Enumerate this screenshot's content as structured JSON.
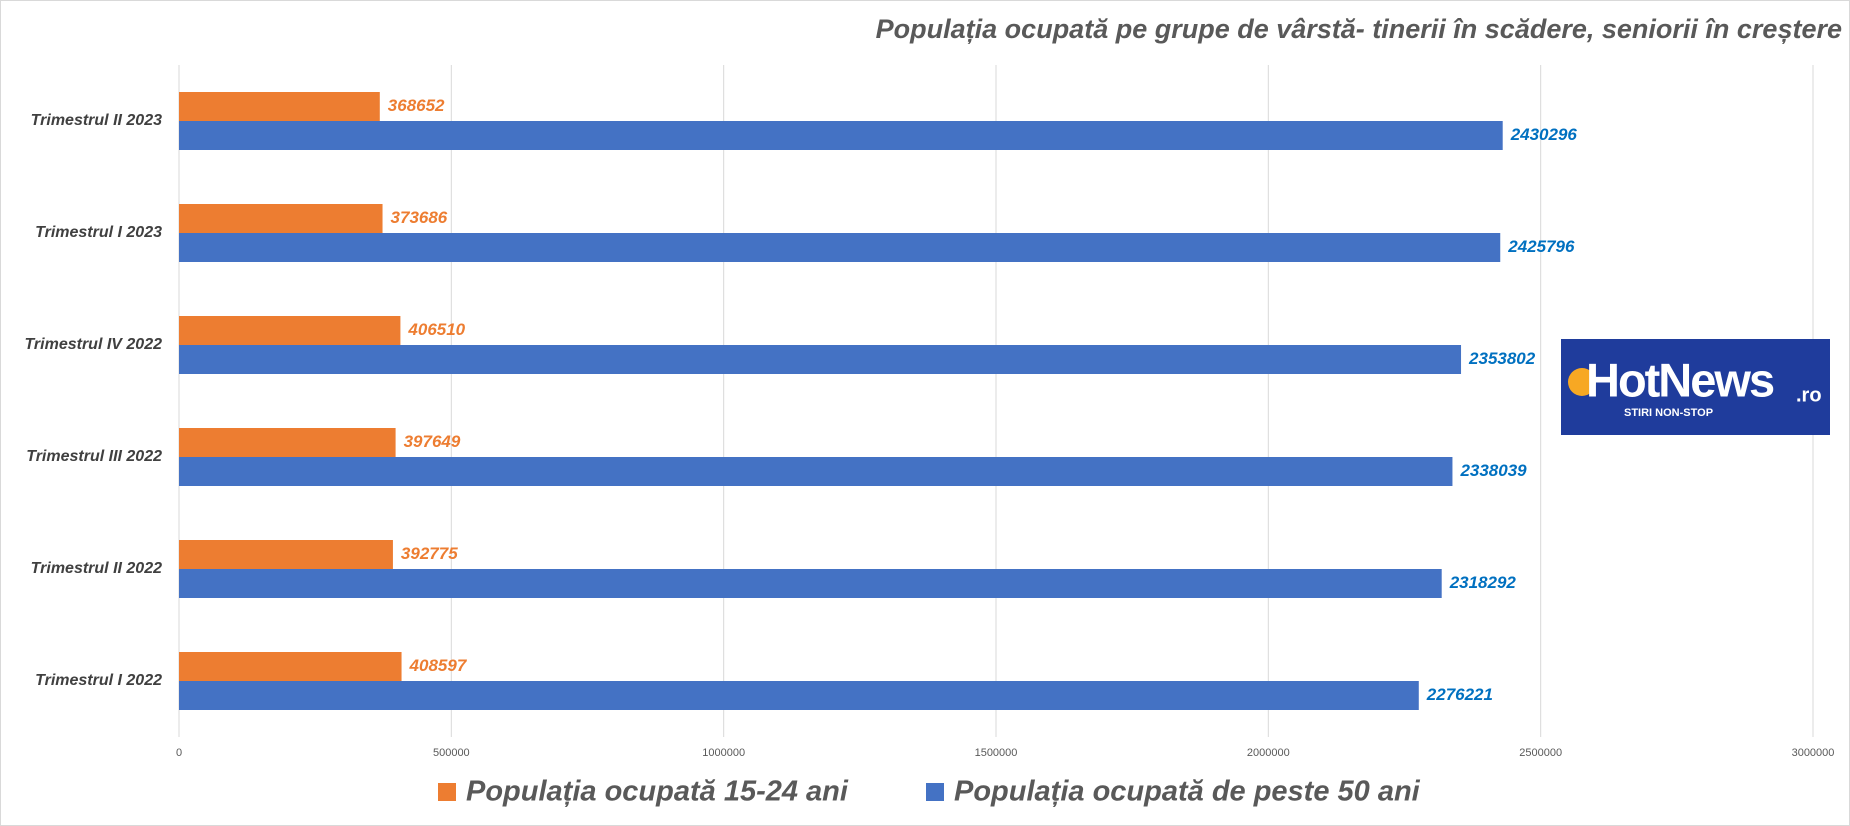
{
  "chart_data": {
    "type": "bar",
    "orientation": "horizontal",
    "title": "Populația ocupată pe grupe de vârstă- tinerii în scădere, seniorii în creștere",
    "categories": [
      "Trimestrul II 2023",
      "Trimestrul I 2023",
      "Trimestrul IV 2022",
      "Trimestrul III 2022",
      "Trimestrul II 2022",
      "Trimestrul I 2022"
    ],
    "series": [
      {
        "name": "Populația ocupată 15-24 ani",
        "color": "#ed7d31",
        "label_color": "#ed7d31",
        "values": [
          368652,
          373686,
          406510,
          397649,
          392775,
          408597
        ]
      },
      {
        "name": "Populația ocupată de peste 50 ani",
        "color": "#4472c4",
        "label_color": "#0070c0",
        "values": [
          2430296,
          2425796,
          2353802,
          2338039,
          2318292,
          2276221
        ]
      }
    ],
    "xlim": [
      0,
      3000000
    ],
    "xticks": [
      0,
      500000,
      1000000,
      1500000,
      2000000,
      2500000,
      3000000
    ],
    "grid": true,
    "legend": "bottom"
  },
  "logo": {
    "name": "HotNews",
    "suffix": ".ro",
    "tagline": "STIRI NON-STOP"
  }
}
